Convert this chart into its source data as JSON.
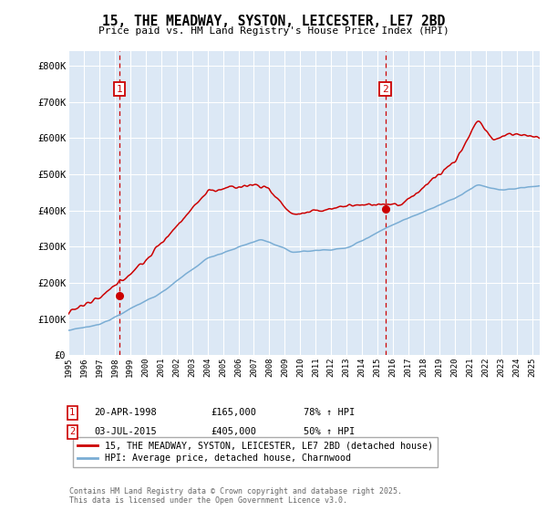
{
  "title_line1": "15, THE MEADWAY, SYSTON, LEICESTER, LE7 2BD",
  "title_line2": "Price paid vs. HM Land Registry's House Price Index (HPI)",
  "ylabel_ticks": [
    "£0",
    "£100K",
    "£200K",
    "£300K",
    "£400K",
    "£500K",
    "£600K",
    "£700K",
    "£800K"
  ],
  "ytick_values": [
    0,
    100000,
    200000,
    300000,
    400000,
    500000,
    600000,
    700000,
    800000
  ],
  "ylim": [
    0,
    840000
  ],
  "xlim_start": 1995.0,
  "xlim_end": 2025.5,
  "background_color": "#ffffff",
  "plot_bg_color": "#dce8f5",
  "grid_color": "#ffffff",
  "red_line_color": "#cc0000",
  "blue_line_color": "#7aadd4",
  "dashed_line_color": "#cc0000",
  "legend_label_red": "15, THE MEADWAY, SYSTON, LEICESTER, LE7 2BD (detached house)",
  "legend_label_blue": "HPI: Average price, detached house, Charnwood",
  "sale1_date_x": 1998.31,
  "sale1_price": 165000,
  "sale2_date_x": 2015.5,
  "sale2_price": 405000,
  "footer_text": "Contains HM Land Registry data © Crown copyright and database right 2025.\nThis data is licensed under the Open Government Licence v3.0.",
  "xtick_years": [
    1995,
    1996,
    1997,
    1998,
    1999,
    2000,
    2001,
    2002,
    2003,
    2004,
    2005,
    2006,
    2007,
    2008,
    2009,
    2010,
    2011,
    2012,
    2013,
    2014,
    2015,
    2016,
    2017,
    2018,
    2019,
    2020,
    2021,
    2022,
    2023,
    2024,
    2025
  ]
}
